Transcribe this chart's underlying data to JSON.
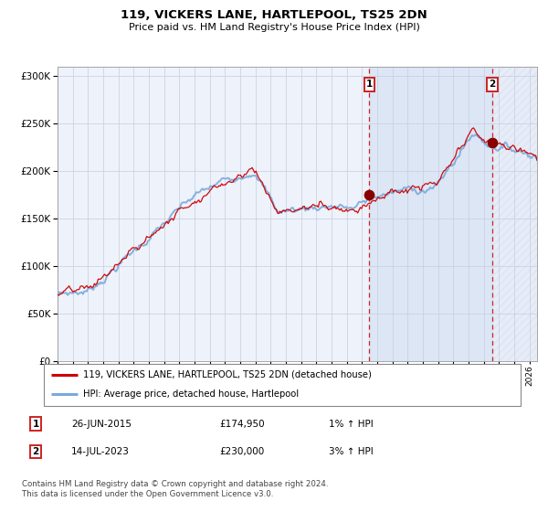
{
  "title": "119, VICKERS LANE, HARTLEPOOL, TS25 2DN",
  "subtitle": "Price paid vs. HM Land Registry's House Price Index (HPI)",
  "legend_line1": "119, VICKERS LANE, HARTLEPOOL, TS25 2DN (detached house)",
  "legend_line2": "HPI: Average price, detached house, Hartlepool",
  "sale1_date": "26-JUN-2015",
  "sale1_price": 174950,
  "sale1_label": "1% ↑ HPI",
  "sale1_year": 2015.49,
  "sale2_date": "14-JUL-2023",
  "sale2_price": 230000,
  "sale2_label": "3% ↑ HPI",
  "sale2_year": 2023.54,
  "xmin": 1995.0,
  "xmax": 2026.5,
  "ymin": 0,
  "ymax": 310000,
  "yticks": [
    0,
    50000,
    100000,
    150000,
    200000,
    250000,
    300000
  ],
  "hpi_color": "#7aaadd",
  "price_color": "#cc0000",
  "plot_bg": "#eef2fa",
  "grid_color": "#c8d0e0",
  "dashed_color": "#cc0000",
  "marker_color": "#880000",
  "shaded_color": "#c8d8f0",
  "hatch_color": "#c0c8d8",
  "copyright_text": "Contains HM Land Registry data © Crown copyright and database right 2024.\nThis data is licensed under the Open Government Licence v3.0."
}
